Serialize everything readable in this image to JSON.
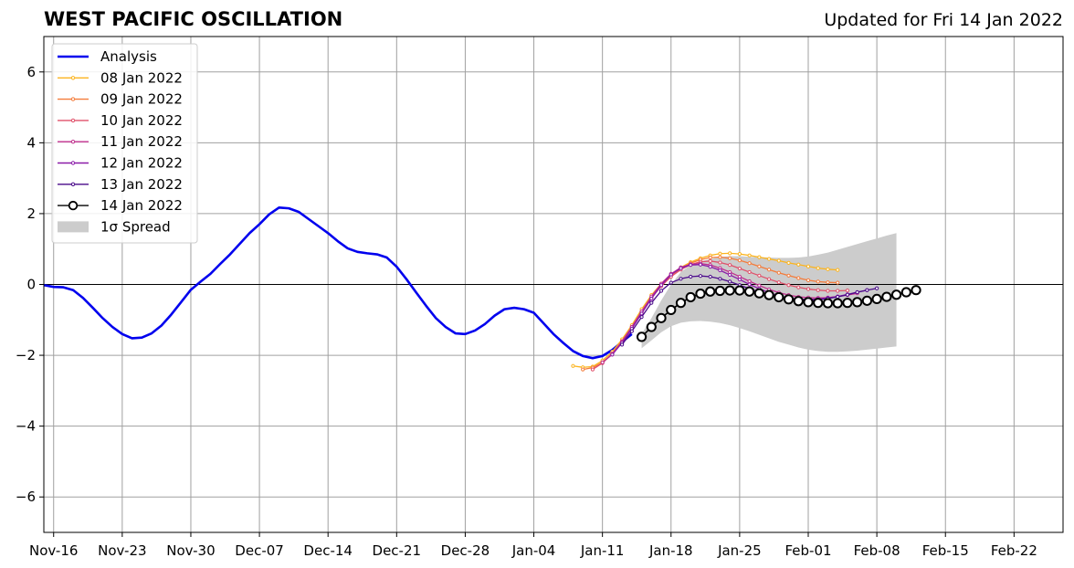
{
  "header": {
    "title": "WEST PACIFIC OSCILLATION",
    "updated": "Updated for Fri 14 Jan 2022"
  },
  "chart_data": {
    "type": "line",
    "title": "WEST PACIFIC OSCILLATION",
    "xlabel": "",
    "ylabel": "",
    "ylim": [
      -7,
      7
    ],
    "xlim": [
      "2021-11-15",
      "2022-02-27"
    ],
    "grid": true,
    "legend_position": "top-left",
    "x_ticks": [
      "Nov-16",
      "Nov-23",
      "Nov-30",
      "Dec-07",
      "Dec-14",
      "Dec-21",
      "Dec-28",
      "Jan-04",
      "Jan-11",
      "Jan-18",
      "Jan-25",
      "Feb-01",
      "Feb-08",
      "Feb-15",
      "Feb-22"
    ],
    "y_ticks": [
      "6",
      "4",
      "2",
      "0",
      "−2",
      "−4",
      "−6"
    ],
    "y_tick_values": [
      6,
      4,
      2,
      0,
      -2,
      -4,
      -6
    ],
    "analysis": {
      "name": "Analysis",
      "color": "#0000ee",
      "start_date": "2021-11-15",
      "values": [
        -0.02,
        -0.07,
        -0.08,
        -0.16,
        -0.38,
        -0.66,
        -0.95,
        -1.2,
        -1.4,
        -1.52,
        -1.5,
        -1.38,
        -1.16,
        -0.85,
        -0.5,
        -0.15,
        0.08,
        0.3,
        0.58,
        0.85,
        1.15,
        1.45,
        1.7,
        1.98,
        2.17,
        2.15,
        2.05,
        1.85,
        1.65,
        1.45,
        1.22,
        1.02,
        0.92,
        0.88,
        0.85,
        0.76,
        0.5,
        0.15,
        -0.23,
        -0.6,
        -0.95,
        -1.2,
        -1.38,
        -1.4,
        -1.3,
        -1.12,
        -0.88,
        -0.7,
        -0.66,
        -0.7,
        -0.8,
        -1.1,
        -1.4,
        -1.65,
        -1.88,
        -2.02,
        -2.08,
        -2.02,
        -1.85,
        -1.62,
        -1.4
      ]
    },
    "series": [
      {
        "name": "08 Jan 2022",
        "color": "#fbb41f",
        "start_date": "2022-01-08",
        "values": [
          -2.3,
          -2.34,
          -2.32,
          -2.15,
          -1.9,
          -1.55,
          -1.15,
          -0.7,
          -0.3,
          0.02,
          0.28,
          0.48,
          0.63,
          0.74,
          0.82,
          0.87,
          0.88,
          0.86,
          0.82,
          0.77,
          0.72,
          0.67,
          0.61,
          0.56,
          0.51,
          0.46,
          0.43,
          0.41
        ]
      },
      {
        "name": "09 Jan 2022",
        "color": "#f47c3b",
        "start_date": "2022-01-09",
        "values": [
          -2.4,
          -2.35,
          -2.2,
          -1.95,
          -1.6,
          -1.2,
          -0.78,
          -0.38,
          -0.02,
          0.25,
          0.45,
          0.6,
          0.7,
          0.76,
          0.77,
          0.74,
          0.68,
          0.6,
          0.51,
          0.42,
          0.33,
          0.25,
          0.18,
          0.12,
          0.08,
          0.06,
          0.05
        ]
      },
      {
        "name": "10 Jan 2022",
        "color": "#e0506a",
        "start_date": "2022-01-10",
        "values": [
          -2.4,
          -2.22,
          -1.95,
          -1.6,
          -1.2,
          -0.78,
          -0.38,
          -0.05,
          0.22,
          0.42,
          0.56,
          0.64,
          0.66,
          0.62,
          0.55,
          0.45,
          0.35,
          0.25,
          0.15,
          0.06,
          -0.02,
          -0.08,
          -0.13,
          -0.16,
          -0.18,
          -0.18,
          -0.17
        ]
      },
      {
        "name": "11 Jan 2022",
        "color": "#c02f8d",
        "start_date": "2022-01-11",
        "values": [
          -2.2,
          -1.98,
          -1.62,
          -1.2,
          -0.76,
          -0.34,
          0.02,
          0.3,
          0.48,
          0.57,
          0.59,
          0.55,
          0.46,
          0.35,
          0.22,
          0.09,
          -0.03,
          -0.14,
          -0.23,
          -0.3,
          -0.35,
          -0.37,
          -0.38,
          -0.37,
          -0.34,
          -0.3,
          -0.25
        ]
      },
      {
        "name": "12 Jan 2022",
        "color": "#8a1aa8",
        "start_date": "2022-01-12",
        "values": [
          -1.98,
          -1.65,
          -1.25,
          -0.82,
          -0.4,
          -0.02,
          0.28,
          0.46,
          0.55,
          0.56,
          0.5,
          0.4,
          0.27,
          0.14,
          0.0,
          -0.12,
          -0.23,
          -0.32,
          -0.38,
          -0.41,
          -0.42,
          -0.41,
          -0.38,
          -0.34,
          -0.28,
          -0.22,
          -0.16
        ]
      },
      {
        "name": "13 Jan 2022",
        "color": "#4a0a8a",
        "start_date": "2022-01-13",
        "values": [
          -1.7,
          -1.32,
          -0.92,
          -0.52,
          -0.18,
          0.05,
          0.16,
          0.22,
          0.24,
          0.22,
          0.16,
          0.08,
          -0.02,
          -0.12,
          -0.22,
          -0.3,
          -0.37,
          -0.42,
          -0.44,
          -0.45,
          -0.43,
          -0.4,
          -0.35,
          -0.29,
          -0.22,
          -0.16,
          -0.11
        ]
      },
      {
        "name": "14 Jan 2022",
        "color": "#000000",
        "marker": "open-circle",
        "start_date": "2022-01-15",
        "values": [
          -1.48,
          -1.2,
          -0.95,
          -0.72,
          -0.52,
          -0.36,
          -0.26,
          -0.2,
          -0.18,
          -0.17,
          -0.17,
          -0.2,
          -0.25,
          -0.3,
          -0.36,
          -0.42,
          -0.47,
          -0.5,
          -0.52,
          -0.53,
          -0.53,
          -0.52,
          -0.5,
          -0.46,
          -0.41,
          -0.35,
          -0.29,
          -0.22,
          -0.16
        ]
      }
    ],
    "spread": {
      "name": "1σ Spread",
      "color": "#cccccc",
      "start_date": "2022-01-15",
      "upper": [
        -1.4,
        -0.95,
        -0.45,
        0.0,
        0.35,
        0.55,
        0.65,
        0.72,
        0.78,
        0.8,
        0.8,
        0.78,
        0.77,
        0.76,
        0.75,
        0.75,
        0.76,
        0.79,
        0.84,
        0.9,
        0.98,
        1.06,
        1.14,
        1.22,
        1.3,
        1.38,
        1.45
      ],
      "lower": [
        -1.8,
        -1.58,
        -1.35,
        -1.18,
        -1.08,
        -1.04,
        -1.03,
        -1.05,
        -1.09,
        -1.15,
        -1.23,
        -1.32,
        -1.42,
        -1.52,
        -1.62,
        -1.7,
        -1.78,
        -1.84,
        -1.88,
        -1.9,
        -1.9,
        -1.89,
        -1.87,
        -1.84,
        -1.81,
        -1.78,
        -1.75
      ]
    }
  }
}
